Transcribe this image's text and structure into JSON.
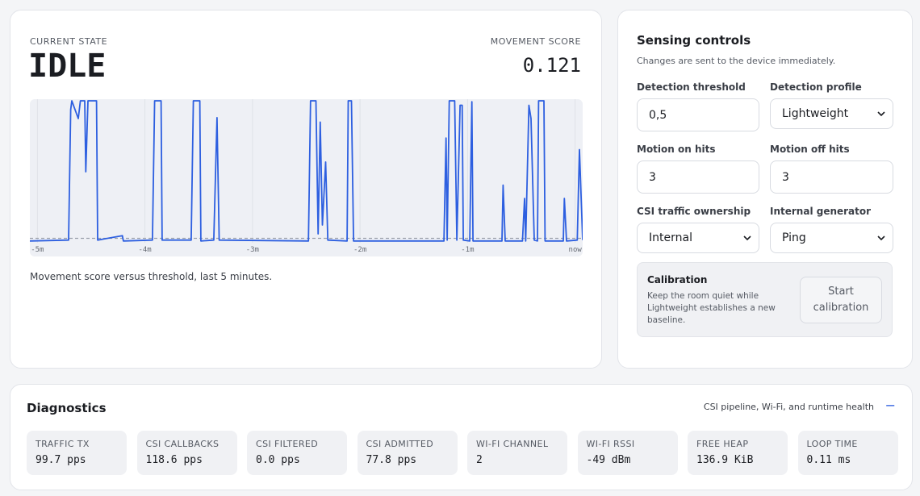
{
  "state_card": {
    "state_label": "CURRENT STATE",
    "state": "IDLE",
    "score_label": "MOVEMENT SCORE",
    "score": "0.121",
    "caption": "Movement score versus threshold, last 5 minutes."
  },
  "chart_data": {
    "type": "line",
    "color": "#2d5fe0",
    "threshold": 0.5,
    "threshold_color": "#9aa0aa",
    "xlim": [
      -5.07,
      0.07
    ],
    "ylim": [
      0,
      16
    ],
    "xticks": [
      {
        "value": -5,
        "label": "-5m"
      },
      {
        "value": -4,
        "label": "-4m"
      },
      {
        "value": -3,
        "label": "-3m"
      },
      {
        "value": -2,
        "label": "-2m"
      },
      {
        "value": -1,
        "label": "-1m"
      },
      {
        "value": 0,
        "label": "now"
      }
    ],
    "grid": true,
    "x": [
      -5.07,
      -4.71,
      -4.69,
      -4.68,
      -4.62,
      -4.6,
      -4.56,
      -4.55,
      -4.53,
      -4.45,
      -4.44,
      -4.21,
      -4.2,
      -3.93,
      -3.91,
      -3.85,
      -3.84,
      -3.57,
      -3.55,
      -3.49,
      -3.48,
      -3.36,
      -3.33,
      -3.31,
      -2.48,
      -2.46,
      -2.41,
      -2.39,
      -2.37,
      -2.35,
      -2.32,
      -2.3,
      -2.12,
      -2.11,
      -2.08,
      -2.06,
      -1.22,
      -1.2,
      -1.19,
      -1.17,
      -1.12,
      -1.1,
      -1.07,
      -1.05,
      -1.04,
      -0.98,
      -0.96,
      -0.95,
      -0.68,
      -0.67,
      -0.65,
      -0.49,
      -0.47,
      -0.46,
      -0.43,
      -0.41,
      -0.38,
      -0.35,
      -0.34,
      -0.29,
      -0.28,
      -0.11,
      -0.1,
      -0.08,
      0.02,
      0.04,
      0.07
    ],
    "values": [
      0.2,
      0.3,
      15,
      16,
      14,
      16,
      16,
      8,
      16,
      16,
      0.3,
      0.8,
      0.2,
      0.3,
      16,
      16,
      0.3,
      0.3,
      16,
      16,
      0.2,
      0.3,
      14.1,
      0.3,
      0.2,
      16,
      16,
      1,
      13.6,
      2,
      9.1,
      0.3,
      0.2,
      16,
      16,
      0.2,
      0.2,
      11.8,
      0.3,
      16,
      16,
      0.3,
      15.5,
      15.5,
      0.3,
      0.2,
      15.9,
      0.2,
      0.2,
      6.5,
      0.2,
      0.2,
      5,
      0.2,
      15.5,
      14,
      0.3,
      0.2,
      16,
      16,
      0.2,
      0.2,
      5,
      0.2,
      0.3,
      10.5,
      0.3
    ]
  },
  "controls": {
    "title": "Sensing controls",
    "subtitle": "Changes are sent to the device immediately.",
    "fields": [
      {
        "label": "Detection threshold",
        "value": "0,5"
      },
      {
        "label": "Detection profile",
        "value": "Lightweight"
      },
      {
        "label": "Motion on hits",
        "value": "3"
      },
      {
        "label": "Motion off hits",
        "value": "3"
      },
      {
        "label": "CSI traffic ownership",
        "value": "Internal"
      },
      {
        "label": "Internal generator",
        "value": "Ping"
      }
    ],
    "calibration": {
      "title": "Calibration",
      "text": "Keep the room quiet while Lightweight establishes a new baseline.",
      "button": "Start calibration"
    }
  },
  "diagnostics": {
    "title": "Diagnostics",
    "subtitle": "CSI pipeline, Wi-Fi, and runtime health",
    "tiles": [
      {
        "label": "TRAFFIC TX",
        "value": "99.7 pps"
      },
      {
        "label": "CSI CALLBACKS",
        "value": "118.6 pps"
      },
      {
        "label": "CSI FILTERED",
        "value": "0.0 pps"
      },
      {
        "label": "CSI ADMITTED",
        "value": "77.8 pps"
      },
      {
        "label": "WI-FI CHANNEL",
        "value": "2"
      },
      {
        "label": "WI-FI RSSI",
        "value": "-49 dBm"
      },
      {
        "label": "FREE HEAP",
        "value": "136.9 KiB"
      },
      {
        "label": "LOOP TIME",
        "value": "0.11 ms"
      }
    ]
  }
}
